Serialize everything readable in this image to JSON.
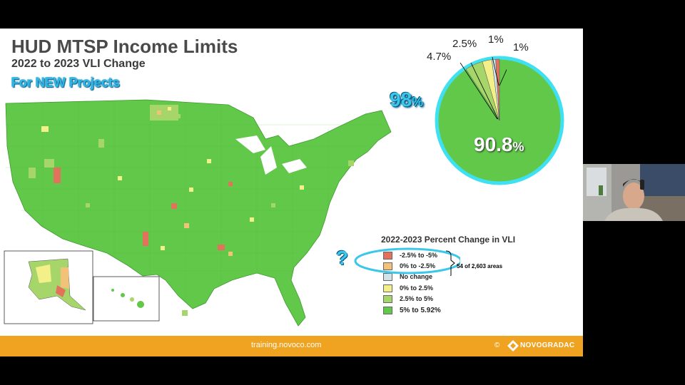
{
  "slide": {
    "title": "HUD MTSP Income Limits",
    "subtitle": "2022 to 2023 VLI Change",
    "tag": "For NEW Projects",
    "question_mark": "?"
  },
  "legend": {
    "title": "2022-2023 Percent Change in VLI",
    "items": [
      {
        "label": "-2.5% to -5%",
        "color": "#e2725b"
      },
      {
        "label": "0% to -2.5%",
        "color": "#f2c17a"
      },
      {
        "label": "No change",
        "color": "#cfe3e8"
      },
      {
        "label": "0% to 2.5%",
        "color": "#f3f08a"
      },
      {
        "label": "2.5% to 5%",
        "color": "#a6d66a"
      },
      {
        "label": "5% to 5.92%",
        "color": "#61c84a"
      }
    ],
    "bracket_note": "54 of 2,603 areas"
  },
  "pie": {
    "callout_total": "98",
    "callout_total_unit": "%",
    "main_value": "90.8",
    "main_unit": "%",
    "labels": [
      "4.7%",
      "2.5%",
      "1%",
      "1%"
    ]
  },
  "chart_data": {
    "type": "pie",
    "title": "",
    "slices": [
      {
        "label": "5% to 5.92%",
        "value": 90.8,
        "color": "#61c84a"
      },
      {
        "label": "2.5% to 5%",
        "value": 4.7,
        "color": "#a6d66a"
      },
      {
        "label": "0% to 2.5%",
        "value": 2.5,
        "color": "#f3f08a"
      },
      {
        "label": "No change",
        "value": 1,
        "color": "#cfe3e8"
      },
      {
        "label": "-2.5% to -5%",
        "value": 1,
        "color": "#e2725b"
      }
    ]
  },
  "footer": {
    "url": "training.novoco.com",
    "copyright": "©",
    "brand": "NOVOGRADAC"
  },
  "colors": {
    "footer_bg": "#f0a320",
    "accent_cyan": "#3ac7ea",
    "map_green": "#61c84a"
  }
}
